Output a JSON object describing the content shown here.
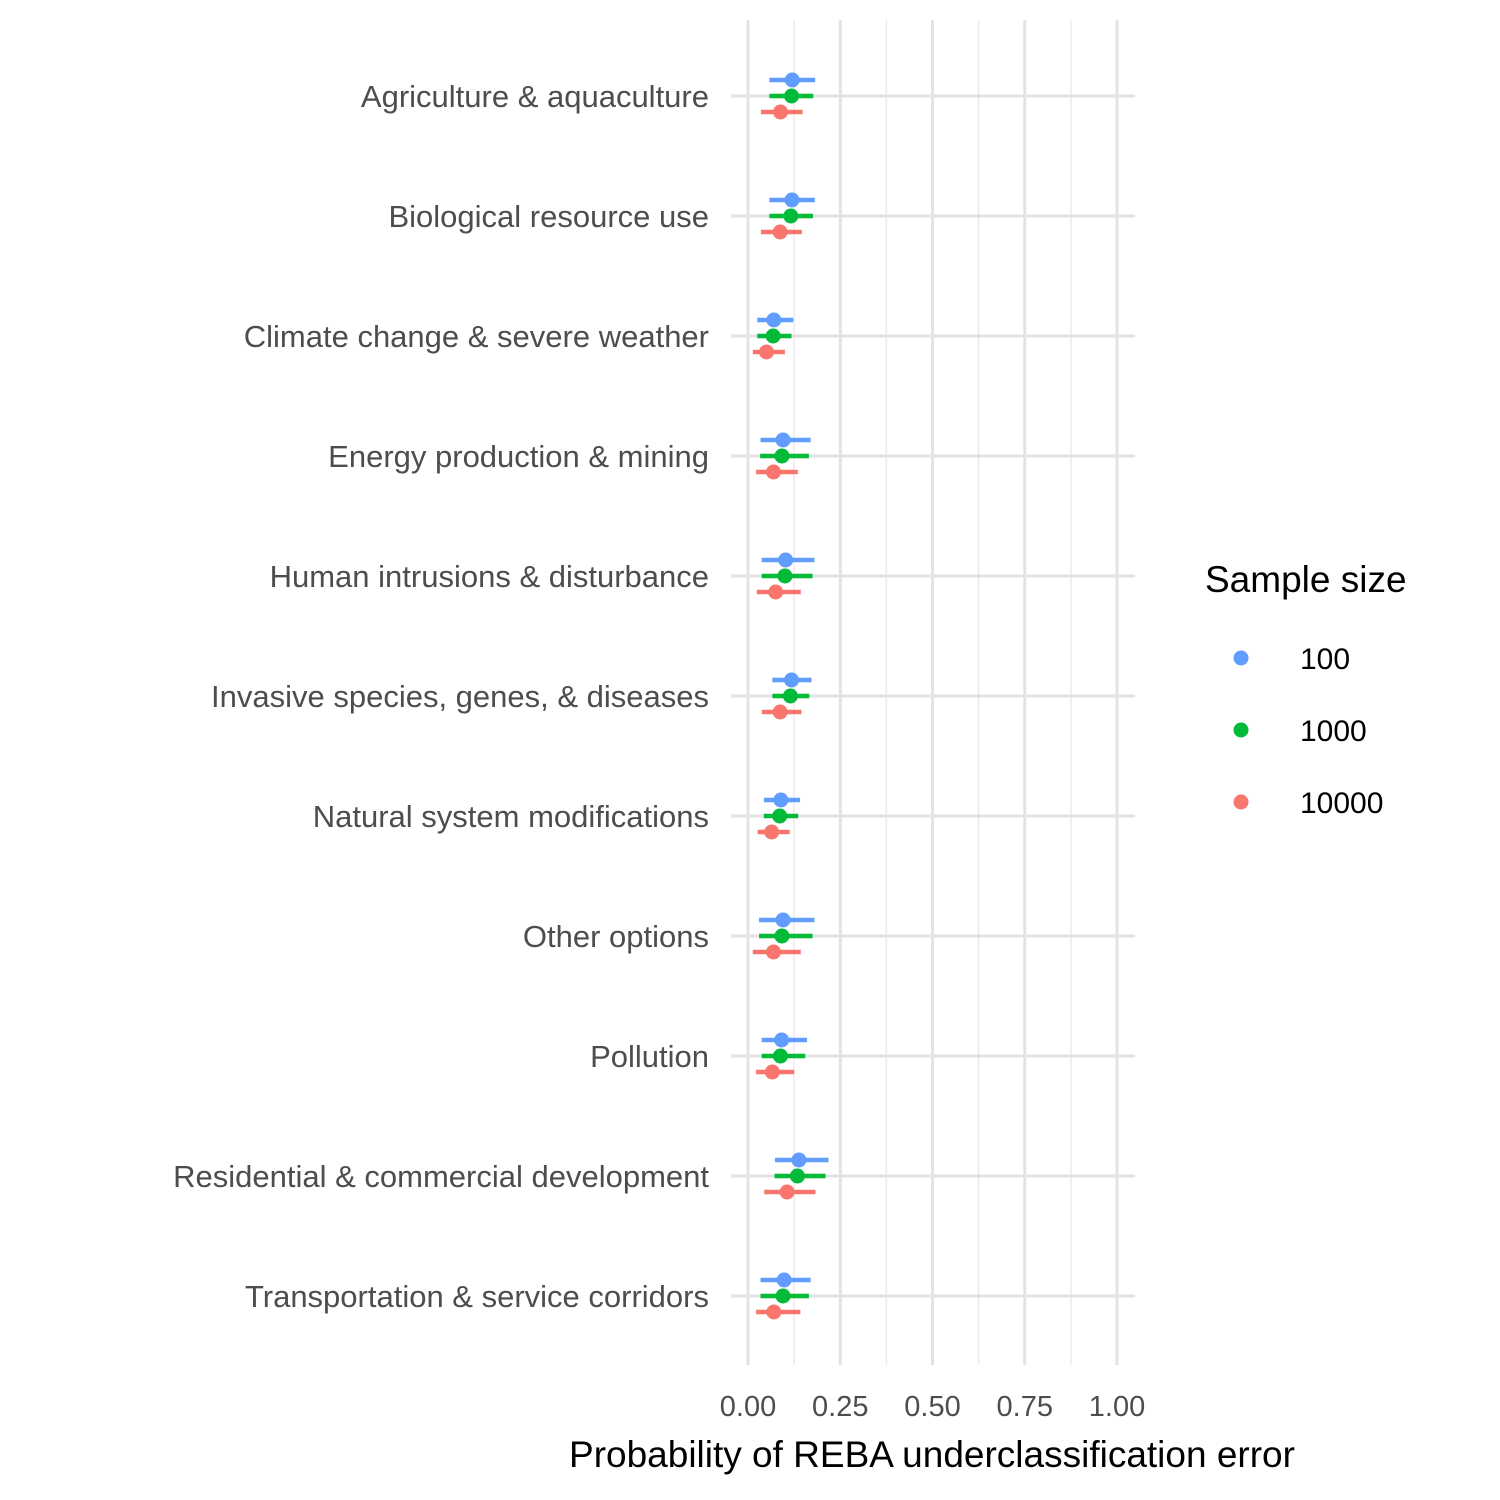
{
  "chart_data": {
    "type": "scatter",
    "orientation": "horizontal-interval",
    "xlabel": "Probability of REBA underclassification error",
    "ylabel": "",
    "xlim": [
      0,
      1.05
    ],
    "x_ticks": [
      0,
      0.25,
      0.5,
      0.75,
      1.0
    ],
    "x_tick_labels": [
      "0.00",
      "0.25",
      "0.50",
      "0.75",
      "1.00"
    ],
    "grid": true,
    "legend": {
      "title": "Sample size",
      "placement": "right"
    },
    "categories": [
      "Agriculture & aquaculture",
      "Biological resource use",
      "Climate change & severe weather",
      "Energy production & mining",
      "Human intrusions & disturbance",
      "Invasive species, genes, & diseases",
      "Natural system modifications",
      "Other options",
      "Pollution",
      "Residential & commercial development",
      "Transportation & service corridors"
    ],
    "series": [
      {
        "name": "100",
        "color": "#619CFF",
        "estimate": [
          0.12,
          0.119,
          0.07,
          0.095,
          0.102,
          0.118,
          0.089,
          0.095,
          0.091,
          0.138,
          0.098
        ],
        "low": [
          0.058,
          0.058,
          0.025,
          0.034,
          0.037,
          0.066,
          0.043,
          0.03,
          0.037,
          0.073,
          0.034
        ],
        "high": [
          0.182,
          0.181,
          0.123,
          0.17,
          0.18,
          0.172,
          0.141,
          0.18,
          0.16,
          0.218,
          0.17
        ]
      },
      {
        "name": "1000",
        "color": "#00BA38",
        "estimate": [
          0.118,
          0.116,
          0.068,
          0.092,
          0.1,
          0.115,
          0.086,
          0.092,
          0.088,
          0.134,
          0.095
        ],
        "low": [
          0.058,
          0.058,
          0.025,
          0.033,
          0.037,
          0.066,
          0.043,
          0.03,
          0.037,
          0.072,
          0.034
        ],
        "high": [
          0.177,
          0.176,
          0.118,
          0.165,
          0.175,
          0.166,
          0.136,
          0.175,
          0.155,
          0.21,
          0.165
        ]
      },
      {
        "name": "10000",
        "color": "#F8766D",
        "estimate": [
          0.088,
          0.087,
          0.05,
          0.069,
          0.075,
          0.087,
          0.064,
          0.069,
          0.066,
          0.106,
          0.07
        ],
        "low": [
          0.035,
          0.035,
          0.013,
          0.022,
          0.024,
          0.038,
          0.026,
          0.013,
          0.022,
          0.044,
          0.022
        ],
        "high": [
          0.148,
          0.146,
          0.1,
          0.135,
          0.143,
          0.145,
          0.113,
          0.143,
          0.125,
          0.183,
          0.142
        ]
      }
    ]
  }
}
